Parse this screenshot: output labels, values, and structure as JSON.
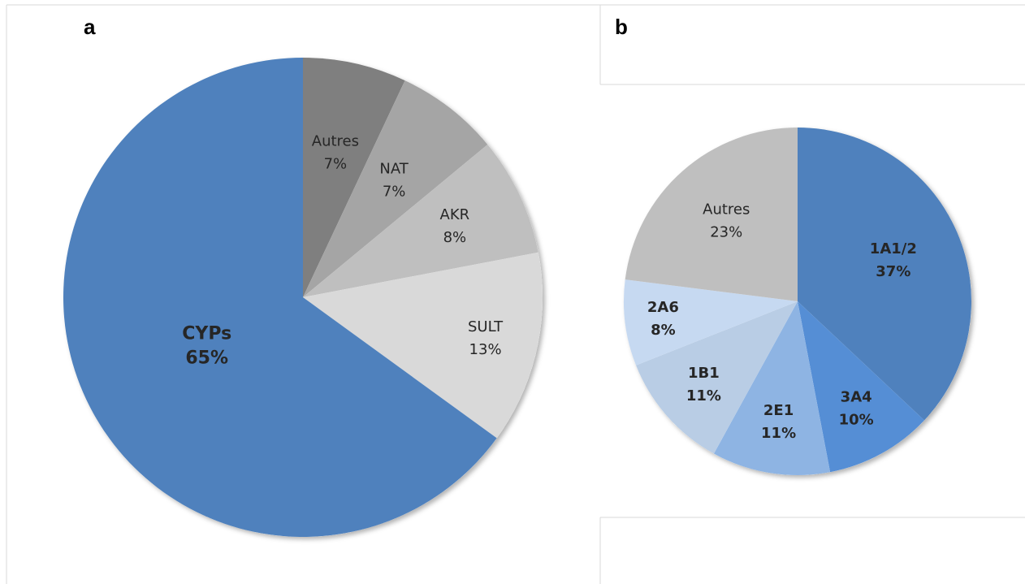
{
  "panels": {
    "a_letter": "a",
    "b_letter": "b"
  },
  "chart_data": [
    {
      "type": "pie",
      "panel": "a",
      "start": "top",
      "direction": "clockwise",
      "slices": [
        {
          "label": "Autres",
          "value": 7,
          "display": "7%",
          "color": "#7f7f7f"
        },
        {
          "label": "NAT",
          "value": 7,
          "display": "7%",
          "color": "#a5a5a5"
        },
        {
          "label": "AKR",
          "value": 8,
          "display": "8%",
          "color": "#bfbfbf"
        },
        {
          "label": "SULT",
          "value": 13,
          "display": "13%",
          "color": "#d9d9d9"
        },
        {
          "label": "CYPs",
          "value": 65,
          "display": "65%",
          "color": "#4f81bd"
        }
      ]
    },
    {
      "type": "pie",
      "panel": "b",
      "start": "top",
      "direction": "clockwise",
      "slices": [
        {
          "label": "1A1/2",
          "value": 37,
          "display": "37%",
          "color": "#4f81bd"
        },
        {
          "label": "3A4",
          "value": 10,
          "display": "10%",
          "color": "#558ed5"
        },
        {
          "label": "2E1",
          "value": 11,
          "display": "11%",
          "color": "#8eb4e3"
        },
        {
          "label": "1B1",
          "value": 11,
          "display": "11%",
          "color": "#b9cde5"
        },
        {
          "label": "2A6",
          "value": 8,
          "display": "8%",
          "color": "#c6d9f1"
        },
        {
          "label": "Autres",
          "value": 23,
          "display": "23%",
          "color": "#bfbfbf"
        }
      ]
    }
  ]
}
